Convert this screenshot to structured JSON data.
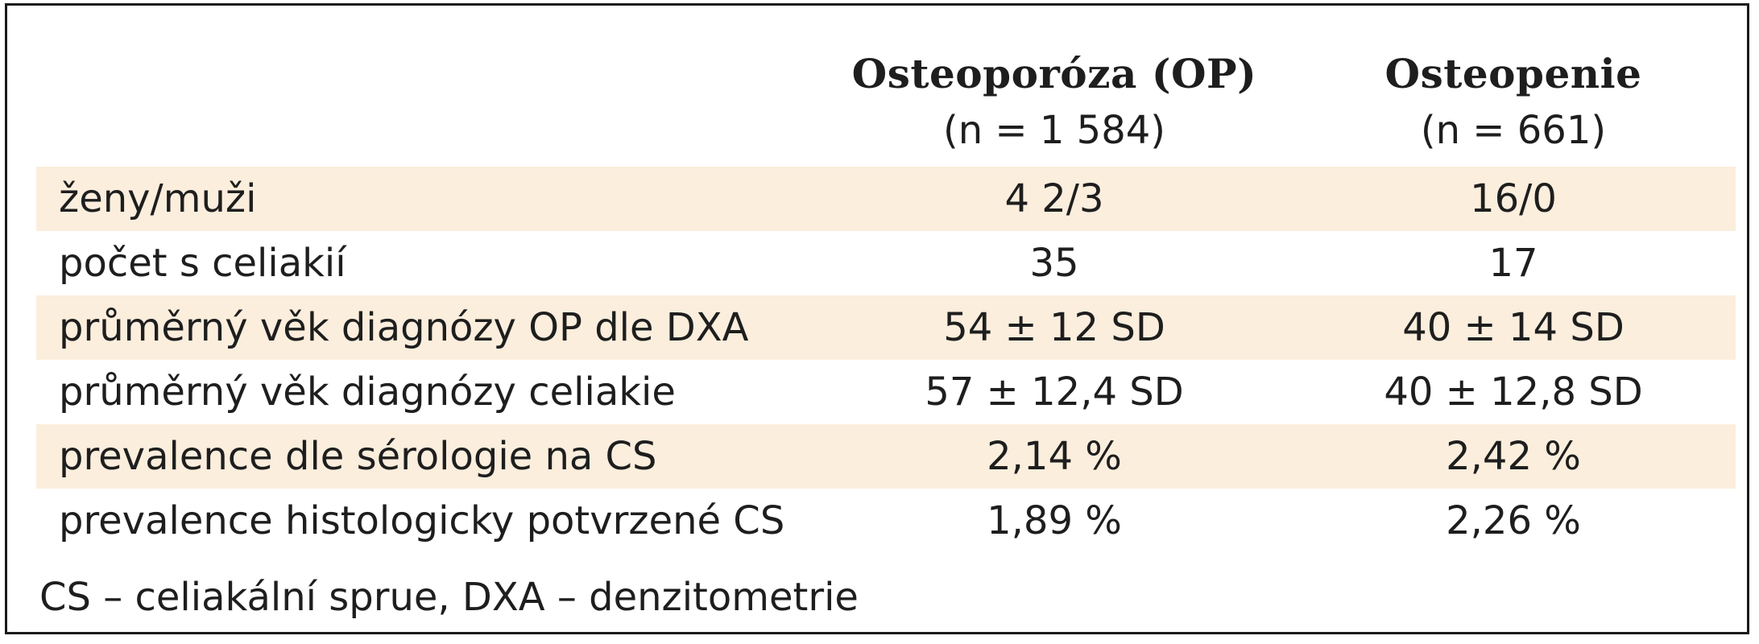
{
  "table": {
    "columns": [
      {
        "title": "Osteoporóza (OP)",
        "n": "(n = 1 584)"
      },
      {
        "title": "Osteopenie",
        "n": "(n = 661)"
      }
    ],
    "rows": [
      {
        "label": "ženy/muži",
        "v1": "4 2/3",
        "v2": "16/0"
      },
      {
        "label": "počet s celiakií",
        "v1": "35",
        "v2": "17"
      },
      {
        "label": "průměrný věk diagnózy OP dle DXA",
        "v1": "54 ± 12 SD",
        "v2": "40 ± 14 SD"
      },
      {
        "label": "průměrný věk diagnózy celiakie",
        "v1": "57 ± 12,4 SD",
        "v2": "40 ± 12,8 SD"
      },
      {
        "label": "prevalence dle sérologie na CS",
        "v1": "2,14 %",
        "v2": "2,42 %"
      },
      {
        "label": "prevalence histologicky potvrzené CS",
        "v1": "1,89 %",
        "v2": "2,26 %"
      }
    ],
    "footnote": "CS – celiakální sprue, DXA – denzitometrie"
  },
  "colors": {
    "stripe": "#fbeedd",
    "border": "#1a1a1a",
    "text": "#1e1e1e"
  }
}
